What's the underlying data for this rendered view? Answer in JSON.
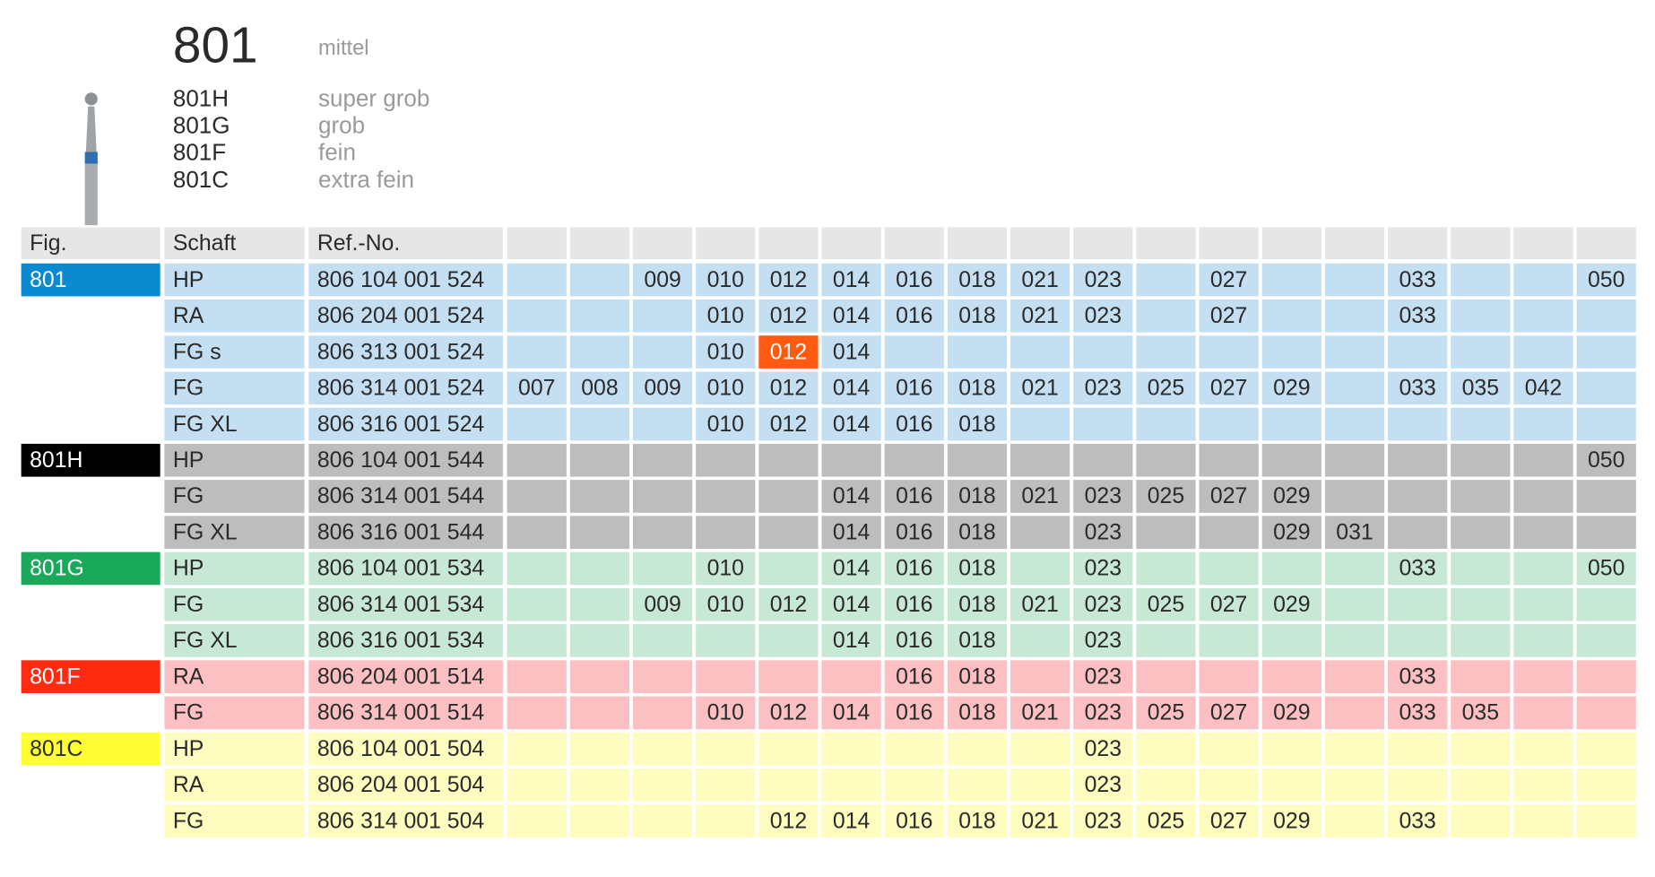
{
  "header": {
    "title": "801",
    "description": "mittel",
    "variants": [
      {
        "code": "801H",
        "description": "super grob"
      },
      {
        "code": "801G",
        "description": "grob"
      },
      {
        "code": "801F",
        "description": "fein"
      },
      {
        "code": "801C",
        "description": "extra fein"
      }
    ]
  },
  "table": {
    "columns": [
      "Fig.",
      "Schaft",
      "Ref.-No."
    ],
    "size_columns": 18,
    "highlight_color": "#ff5a0f",
    "groups": [
      {
        "fig": "801",
        "badge_color": "#0b8ad0",
        "badge_text_color": "#ffffff",
        "row_color": "#c5dff2",
        "rows": [
          {
            "schaft": "HP",
            "ref": "806 104 001 524",
            "sizes": [
              null,
              null,
              "009",
              "010",
              "012",
              "014",
              "016",
              "018",
              "021",
              "023",
              null,
              "027",
              null,
              null,
              "033",
              null,
              null,
              "050"
            ]
          },
          {
            "schaft": "RA",
            "ref": "806 204 001 524",
            "sizes": [
              null,
              null,
              null,
              "010",
              "012",
              "014",
              "016",
              "018",
              "021",
              "023",
              null,
              "027",
              null,
              null,
              "033",
              null,
              null,
              null
            ]
          },
          {
            "schaft": "FG s",
            "ref": "806 313 001 524",
            "highlight_col": 4,
            "sizes": [
              null,
              null,
              null,
              "010",
              "012",
              "014",
              null,
              null,
              null,
              null,
              null,
              null,
              null,
              null,
              null,
              null,
              null,
              null
            ]
          },
          {
            "schaft": "FG",
            "ref": "806 314 001 524",
            "sizes": [
              "007",
              "008",
              "009",
              "010",
              "012",
              "014",
              "016",
              "018",
              "021",
              "023",
              "025",
              "027",
              "029",
              null,
              "033",
              "035",
              "042",
              null
            ]
          },
          {
            "schaft": "FG XL",
            "ref": "806 316 001 524",
            "sizes": [
              null,
              null,
              null,
              "010",
              "012",
              "014",
              "016",
              "018",
              null,
              null,
              null,
              null,
              null,
              null,
              null,
              null,
              null,
              null
            ]
          }
        ]
      },
      {
        "fig": "801H",
        "badge_color": "#000000",
        "badge_text_color": "#ffffff",
        "row_color": "#bdbdbd",
        "rows": [
          {
            "schaft": "HP",
            "ref": "806 104 001 544",
            "sizes": [
              null,
              null,
              null,
              null,
              null,
              null,
              null,
              null,
              null,
              null,
              null,
              null,
              null,
              null,
              null,
              null,
              null,
              "050"
            ]
          },
          {
            "schaft": "FG",
            "ref": "806 314 001 544",
            "sizes": [
              null,
              null,
              null,
              null,
              null,
              "014",
              "016",
              "018",
              "021",
              "023",
              "025",
              "027",
              "029",
              null,
              null,
              null,
              null,
              null
            ]
          },
          {
            "schaft": "FG XL",
            "ref": "806 316 001 544",
            "sizes": [
              null,
              null,
              null,
              null,
              null,
              "014",
              "016",
              "018",
              null,
              "023",
              null,
              null,
              "029",
              "031",
              null,
              null,
              null,
              null
            ]
          }
        ]
      },
      {
        "fig": "801G",
        "badge_color": "#1aa85a",
        "badge_text_color": "#ffffff",
        "row_color": "#c8e8d6",
        "rows": [
          {
            "schaft": "HP",
            "ref": "806 104 001 534",
            "sizes": [
              null,
              null,
              null,
              "010",
              null,
              "014",
              "016",
              "018",
              null,
              "023",
              null,
              null,
              null,
              null,
              "033",
              null,
              null,
              "050"
            ]
          },
          {
            "schaft": "FG",
            "ref": "806 314 001 534",
            "sizes": [
              null,
              null,
              "009",
              "010",
              "012",
              "014",
              "016",
              "018",
              "021",
              "023",
              "025",
              "027",
              "029",
              null,
              null,
              null,
              null,
              null
            ]
          },
          {
            "schaft": "FG XL",
            "ref": "806 316 001 534",
            "sizes": [
              null,
              null,
              null,
              null,
              null,
              "014",
              "016",
              "018",
              null,
              "023",
              null,
              null,
              null,
              null,
              null,
              null,
              null,
              null
            ]
          }
        ]
      },
      {
        "fig": "801F",
        "badge_color": "#ff2a10",
        "badge_text_color": "#ffffff",
        "row_color": "#fcc0c2",
        "rows": [
          {
            "schaft": "RA",
            "ref": "806 204 001 514",
            "sizes": [
              null,
              null,
              null,
              null,
              null,
              null,
              "016",
              "018",
              null,
              "023",
              null,
              null,
              null,
              null,
              "033",
              null,
              null,
              null
            ]
          },
          {
            "schaft": "FG",
            "ref": "806 314 001 514",
            "sizes": [
              null,
              null,
              null,
              "010",
              "012",
              "014",
              "016",
              "018",
              "021",
              "023",
              "025",
              "027",
              "029",
              null,
              "033",
              "035",
              null,
              null
            ]
          }
        ]
      },
      {
        "fig": "801C",
        "badge_color": "#ffff33",
        "badge_text_color": "#2a2a2a",
        "row_color": "#fffcc0",
        "rows": [
          {
            "schaft": "HP",
            "ref": "806 104 001 504",
            "sizes": [
              null,
              null,
              null,
              null,
              null,
              null,
              null,
              null,
              null,
              "023",
              null,
              null,
              null,
              null,
              null,
              null,
              null,
              null
            ]
          },
          {
            "schaft": "RA",
            "ref": "806 204 001 504",
            "sizes": [
              null,
              null,
              null,
              null,
              null,
              null,
              null,
              null,
              null,
              "023",
              null,
              null,
              null,
              null,
              null,
              null,
              null,
              null
            ]
          },
          {
            "schaft": "FG",
            "ref": "806 314 001 504",
            "sizes": [
              null,
              null,
              null,
              null,
              "012",
              "014",
              "016",
              "018",
              "021",
              "023",
              "025",
              "027",
              "029",
              null,
              "033",
              null,
              null,
              null
            ]
          }
        ]
      }
    ]
  }
}
